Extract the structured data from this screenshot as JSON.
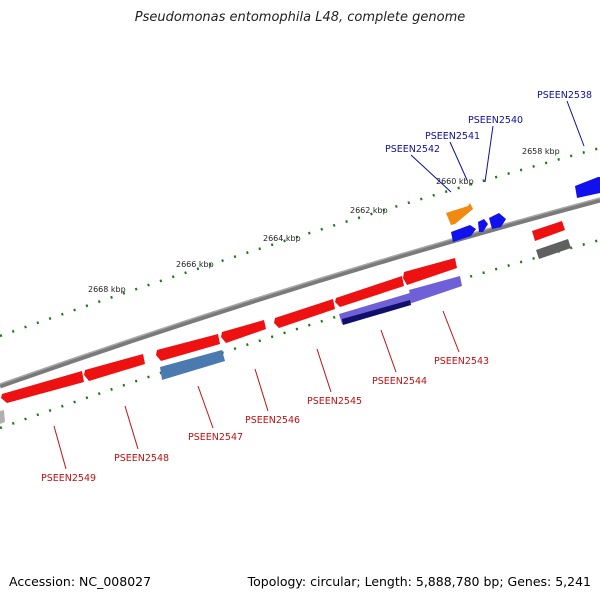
{
  "title": "Pseudomonas entomophila L48, complete genome",
  "footer": {
    "accession": "Accession: NC_008027",
    "summary": "Topology: circular; Length: 5,888,780 bp; Genes: 5,241"
  },
  "ruler_labels": [
    {
      "id": "k2658",
      "text": "2658 kbp"
    },
    {
      "id": "k2660",
      "text": "2660 kbp"
    },
    {
      "id": "k2662",
      "text": "2662 kbp"
    },
    {
      "id": "k2664",
      "text": "2664 kbp"
    },
    {
      "id": "k2666",
      "text": "2666 kbp"
    },
    {
      "id": "k2668",
      "text": "2668 kbp"
    }
  ],
  "gene_labels": [
    {
      "id": "PSEEN2538",
      "text": "PSEEN2538",
      "strand": "forward"
    },
    {
      "id": "PSEEN2540",
      "text": "PSEEN2540",
      "strand": "forward"
    },
    {
      "id": "PSEEN2541",
      "text": "PSEEN2541",
      "strand": "forward"
    },
    {
      "id": "PSEEN2542",
      "text": "PSEEN2542",
      "strand": "forward"
    },
    {
      "id": "PSEEN2543",
      "text": "PSEEN2543",
      "strand": "reverse"
    },
    {
      "id": "PSEEN2544",
      "text": "PSEEN2544",
      "strand": "reverse"
    },
    {
      "id": "PSEEN2545",
      "text": "PSEEN2545",
      "strand": "reverse"
    },
    {
      "id": "PSEEN2546",
      "text": "PSEEN2546",
      "strand": "reverse"
    },
    {
      "id": "PSEEN2547",
      "text": "PSEEN2547",
      "strand": "reverse"
    },
    {
      "id": "PSEEN2548",
      "text": "PSEEN2548",
      "strand": "reverse"
    },
    {
      "id": "PSEEN2549",
      "text": "PSEEN2549",
      "strand": "reverse"
    }
  ],
  "colors": {
    "forward_label": "#1010a0",
    "reverse_label": "#c01010",
    "backbone": "#7a7a7a",
    "tick": "#1a7a1a",
    "gene_red": "#ee1111",
    "gene_blue": "#1111ee",
    "gene_orange": "#f08a10",
    "gene_steel": "#4a7ab0",
    "gene_purple": "#7060d8",
    "gene_navy": "#10106a",
    "gene_gray": "#606060"
  }
}
